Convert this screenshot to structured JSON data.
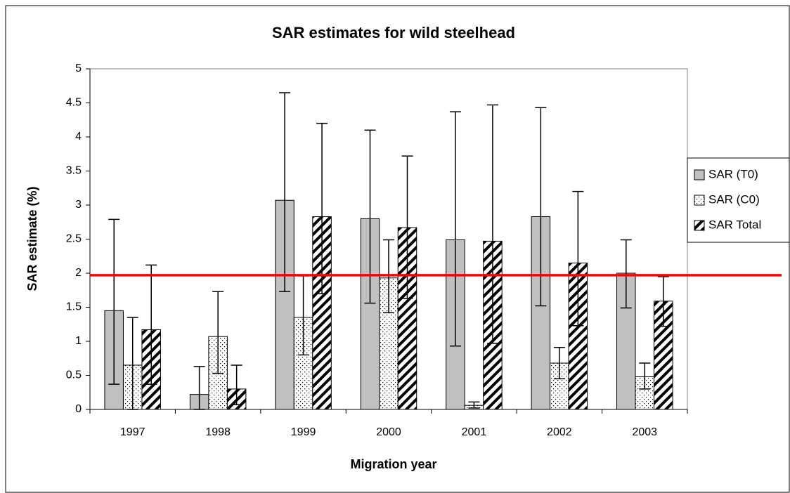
{
  "chart_data": {
    "type": "bar",
    "title": "SAR estimates for wild steelhead",
    "xlabel": "Migration year",
    "ylabel": "SAR estimate (%)",
    "categories": [
      "1997",
      "1998",
      "1999",
      "2000",
      "2001",
      "2002",
      "2003"
    ],
    "series": [
      {
        "name": "SAR (T0)",
        "color": "#c0c0c0",
        "pattern": "solid",
        "values": [
          1.45,
          0.22,
          3.07,
          2.8,
          2.49,
          2.83,
          2.0
        ],
        "lower": [
          0.37,
          0.0,
          1.73,
          1.56,
          0.93,
          1.52,
          1.49
        ],
        "upper": [
          2.79,
          0.63,
          4.65,
          4.1,
          4.37,
          4.43,
          2.49
        ]
      },
      {
        "name": "SAR (C0)",
        "color": "#ffffff",
        "pattern": "dots",
        "values": [
          0.65,
          1.07,
          1.35,
          1.93,
          0.06,
          0.68,
          0.48
        ],
        "lower": [
          0.0,
          0.53,
          0.8,
          1.42,
          0.02,
          0.45,
          0.3
        ],
        "upper": [
          1.35,
          1.73,
          1.96,
          2.49,
          0.11,
          0.91,
          0.68
        ]
      },
      {
        "name": "SAR Total",
        "color": "#ffffff",
        "pattern": "hatch",
        "values": [
          1.17,
          0.3,
          2.83,
          2.67,
          2.47,
          2.15,
          1.59
        ],
        "lower": [
          0.37,
          0.07,
          1.7,
          1.63,
          0.97,
          1.23,
          1.22
        ],
        "upper": [
          2.12,
          0.65,
          4.2,
          3.72,
          4.47,
          3.2,
          1.95
        ]
      }
    ],
    "ylim": [
      0,
      5
    ],
    "yticks": [
      0,
      {
        "value": 0.5,
        "label": "0.5"
      },
      1,
      {
        "value": 1.5,
        "label": "1.5"
      },
      2,
      {
        "value": 2.5,
        "label": "2.5"
      },
      3,
      {
        "value": 3.5,
        "label": "3.5"
      },
      4,
      {
        "value": 4.5,
        "label": "4.5"
      },
      5
    ],
    "reference_line": {
      "value": 1.97,
      "color": "#ff0000"
    },
    "legend": "right"
  }
}
